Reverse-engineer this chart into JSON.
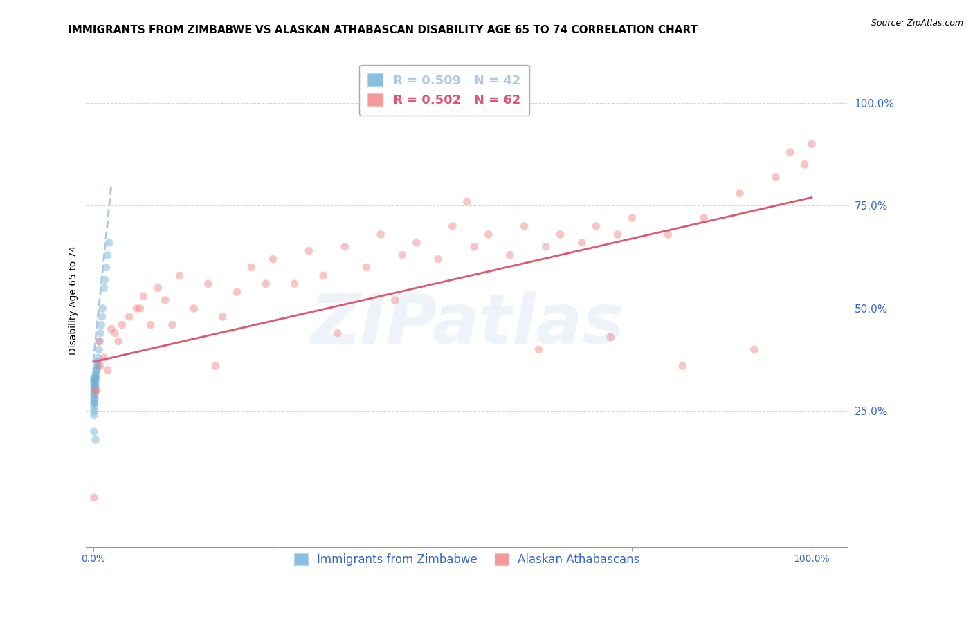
{
  "title": "IMMIGRANTS FROM ZIMBABWE VS ALASKAN ATHABASCAN DISABILITY AGE 65 TO 74 CORRELATION CHART",
  "source": "Source: ZipAtlas.com",
  "ylabel": "Disability Age 65 to 74",
  "xlim": [
    -0.01,
    1.05
  ],
  "ylim": [
    -0.08,
    1.12
  ],
  "xticks": [
    0.0,
    0.25,
    0.5,
    0.75,
    1.0
  ],
  "xtick_labels": [
    "0.0%",
    "",
    "",
    "",
    "100.0%"
  ],
  "ytick_labels": [
    "25.0%",
    "50.0%",
    "75.0%",
    "100.0%"
  ],
  "yticks": [
    0.25,
    0.5,
    0.75,
    1.0
  ],
  "background_color": "#ffffff",
  "grid_color": "#cccccc",
  "watermark": "ZIPatlas",
  "legend_top": [
    {
      "label": "R = 0.509   N = 42",
      "color": "#6baed6"
    },
    {
      "label": "R = 0.502   N = 62",
      "color": "#f08080"
    }
  ],
  "legend_bottom": [
    {
      "label": "Immigrants from Zimbabwe",
      "color": "#6baed6"
    },
    {
      "label": "Alaskan Athabascans",
      "color": "#f08080"
    }
  ],
  "blue_scatter_x": [
    0.0005,
    0.0008,
    0.001,
    0.001,
    0.001,
    0.001,
    0.001,
    0.001,
    0.001,
    0.001,
    0.002,
    0.002,
    0.002,
    0.002,
    0.002,
    0.002,
    0.002,
    0.003,
    0.003,
    0.003,
    0.003,
    0.004,
    0.004,
    0.004,
    0.005,
    0.005,
    0.006,
    0.006,
    0.007,
    0.008,
    0.009,
    0.01,
    0.011,
    0.012,
    0.013,
    0.015,
    0.016,
    0.018,
    0.02,
    0.022,
    0.001,
    0.003
  ],
  "blue_scatter_y": [
    0.32,
    0.33,
    0.31,
    0.3,
    0.29,
    0.28,
    0.27,
    0.26,
    0.25,
    0.24,
    0.33,
    0.32,
    0.31,
    0.3,
    0.29,
    0.28,
    0.27,
    0.34,
    0.33,
    0.32,
    0.31,
    0.35,
    0.34,
    0.33,
    0.36,
    0.35,
    0.37,
    0.36,
    0.38,
    0.4,
    0.42,
    0.44,
    0.46,
    0.48,
    0.5,
    0.55,
    0.57,
    0.6,
    0.63,
    0.66,
    0.2,
    0.18
  ],
  "pink_scatter_x": [
    0.001,
    0.003,
    0.008,
    0.015,
    0.02,
    0.025,
    0.03,
    0.04,
    0.05,
    0.06,
    0.07,
    0.08,
    0.09,
    0.1,
    0.12,
    0.14,
    0.16,
    0.18,
    0.2,
    0.22,
    0.25,
    0.28,
    0.3,
    0.32,
    0.35,
    0.38,
    0.4,
    0.43,
    0.45,
    0.48,
    0.5,
    0.53,
    0.55,
    0.58,
    0.6,
    0.63,
    0.65,
    0.68,
    0.7,
    0.73,
    0.75,
    0.8,
    0.85,
    0.9,
    0.95,
    1.0,
    0.005,
    0.01,
    0.035,
    0.065,
    0.11,
    0.17,
    0.24,
    0.34,
    0.42,
    0.52,
    0.62,
    0.72,
    0.82,
    0.92,
    0.97,
    0.99
  ],
  "pink_scatter_y": [
    0.04,
    0.3,
    0.42,
    0.38,
    0.35,
    0.45,
    0.44,
    0.46,
    0.48,
    0.5,
    0.53,
    0.46,
    0.55,
    0.52,
    0.58,
    0.5,
    0.56,
    0.48,
    0.54,
    0.6,
    0.62,
    0.56,
    0.64,
    0.58,
    0.65,
    0.6,
    0.68,
    0.63,
    0.66,
    0.62,
    0.7,
    0.65,
    0.68,
    0.63,
    0.7,
    0.65,
    0.68,
    0.66,
    0.7,
    0.68,
    0.72,
    0.68,
    0.72,
    0.78,
    0.82,
    0.9,
    0.3,
    0.36,
    0.42,
    0.5,
    0.46,
    0.36,
    0.56,
    0.44,
    0.52,
    0.76,
    0.4,
    0.43,
    0.36,
    0.4,
    0.88,
    0.85
  ],
  "blue_line_x": [
    0.0,
    0.025
  ],
  "blue_line_y": [
    0.37,
    0.8
  ],
  "blue_line_color": "#adc8e8",
  "blue_line_style": "--",
  "pink_line_x": [
    0.0,
    1.0
  ],
  "pink_line_y": [
    0.37,
    0.77
  ],
  "pink_line_color": "#e05570",
  "title_fontsize": 11,
  "axis_label_fontsize": 10,
  "tick_fontsize": 10,
  "legend_fontsize": 13,
  "source_fontsize": 9,
  "marker_size": 70,
  "scatter_alpha": 0.45,
  "watermark_color": "#c5d8ee",
  "watermark_fontsize": 72,
  "watermark_alpha": 0.3
}
